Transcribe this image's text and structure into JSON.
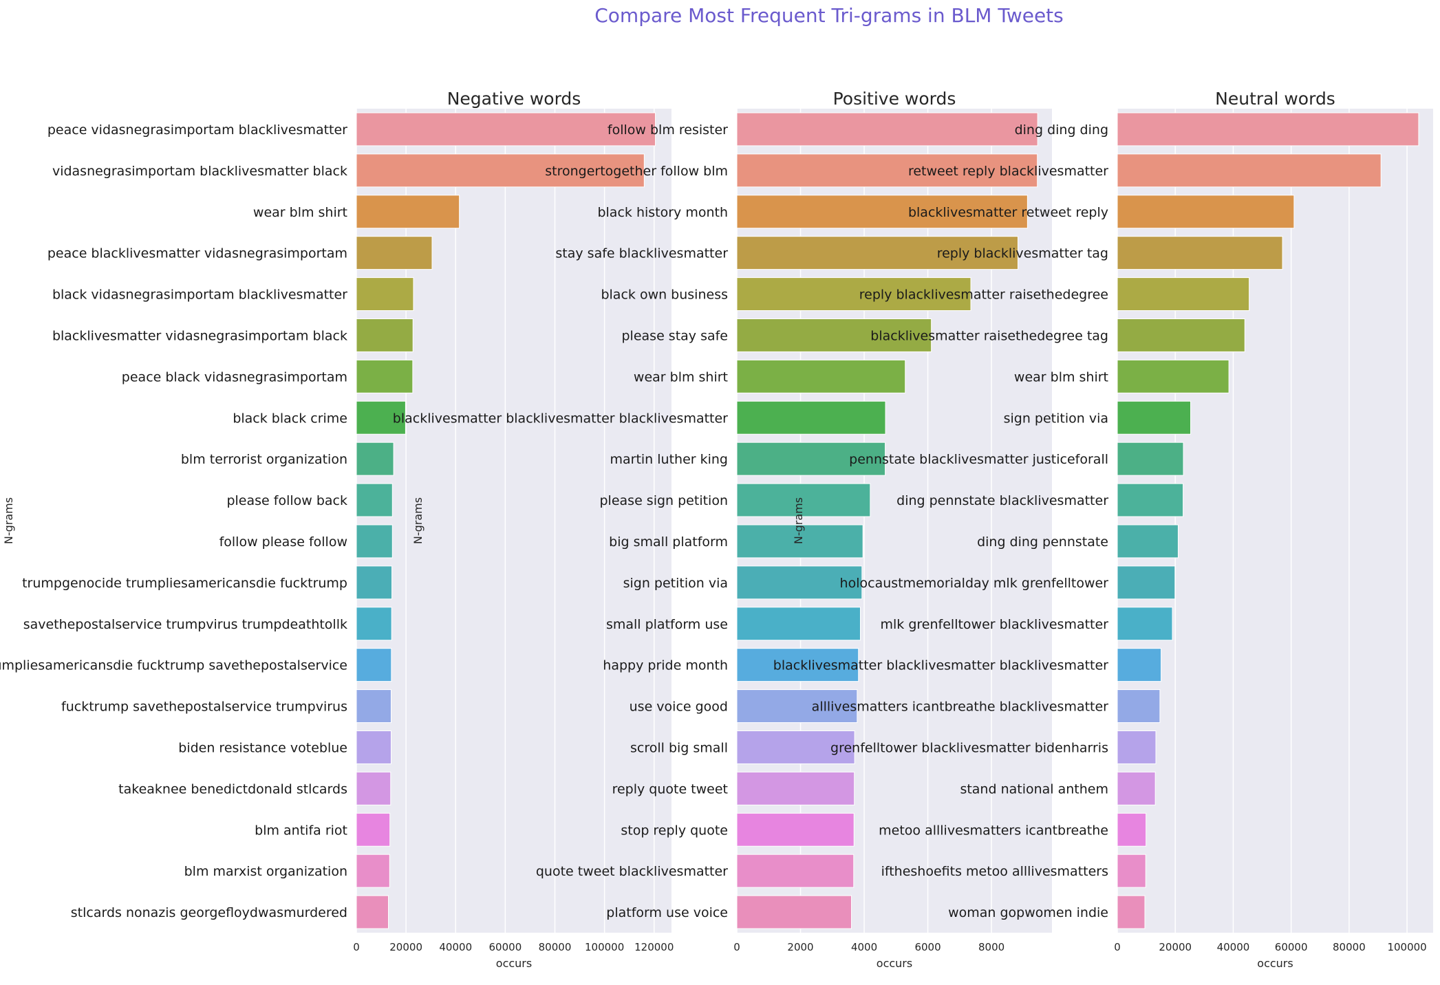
{
  "figure": {
    "suptitle": "Compare Most Frequent Tri-grams in BLM Tweets",
    "title_color": "#6a5acd"
  },
  "palette": [
    "#ea96a0",
    "#e8937f",
    "#d9944c",
    "#bd9c48",
    "#acaa45",
    "#94ab44",
    "#7bb046",
    "#4cb050",
    "#4cb086",
    "#4cb29a",
    "#4bb0a9",
    "#4baeb6",
    "#4ab0c8",
    "#57acde",
    "#93a9e6",
    "#b5a3ea",
    "#d397e3",
    "#e785e0",
    "#e88ec9",
    "#e98fbb"
  ],
  "chart_data": [
    {
      "type": "bar",
      "orientation": "horizontal",
      "title": "Negative words",
      "xlabel": "occurs",
      "ylabel": "N-grams",
      "xlim": [
        0,
        127000
      ],
      "xticks": [
        0,
        20000,
        40000,
        60000,
        80000,
        100000,
        120000
      ],
      "categories": [
        "peace vidasnegrasimportam blacklivesmatter",
        "vidasnegrasimportam blacklivesmatter black",
        "wear blm shirt",
        "peace blacklivesmatter vidasnegrasimportam",
        "black vidasnegrasimportam blacklivesmatter",
        "blacklivesmatter vidasnegrasimportam black",
        "peace black vidasnegrasimportam",
        "black black crime",
        "blm terrorist organization",
        "please follow back",
        "follow please follow",
        "trumpgenocide trumpliesamericansdie fucktrump",
        "savethepostalservice trumpvirus trumpdeathtollk",
        "trumpliesamericansdie fucktrump savethepostalservice",
        "fucktrump savethepostalservice trumpvirus",
        "biden resistance voteblue",
        "takeaknee benedictdonald stlcards",
        "blm antifa riot",
        "blm marxist organization",
        "stlcards nonazis georgefloydwasmurdered"
      ],
      "values": [
        120500,
        116000,
        41500,
        30500,
        23000,
        22800,
        22700,
        19800,
        15000,
        14500,
        14500,
        14300,
        14200,
        14100,
        14000,
        14000,
        13800,
        13500,
        13400,
        12900
      ]
    },
    {
      "type": "bar",
      "orientation": "horizontal",
      "title": "Positive words",
      "xlabel": "occurs",
      "ylabel": "N-grams",
      "xlim": [
        0,
        9900
      ],
      "xticks": [
        0,
        2000,
        4000,
        6000,
        8000
      ],
      "categories": [
        "follow blm resister",
        "strongertogether follow blm",
        "black history month",
        "stay safe blacklivesmatter",
        "black own business",
        "please stay safe",
        "wear blm shirt",
        "blacklivesmatter blacklivesmatter blacklivesmatter",
        "martin luther king",
        "please sign petition",
        "big small platform",
        "sign petition via",
        "small platform use",
        "happy pride month",
        "use voice good",
        "scroll big small",
        "reply quote tweet",
        "stop reply quote",
        "quote tweet blacklivesmatter",
        "platform use voice"
      ],
      "values": [
        9450,
        9440,
        9130,
        8830,
        7350,
        6110,
        5290,
        4670,
        4660,
        4190,
        3960,
        3930,
        3880,
        3820,
        3780,
        3700,
        3690,
        3680,
        3670,
        3600
      ]
    },
    {
      "type": "bar",
      "orientation": "horizontal",
      "title": "Neutral words",
      "xlabel": "occurs",
      "ylabel": "N-grams",
      "xlim": [
        0,
        109000
      ],
      "xticks": [
        0,
        20000,
        40000,
        60000,
        80000,
        100000
      ],
      "categories": [
        "ding ding ding",
        "retweet reply blacklivesmatter",
        "blacklivesmatter retweet reply",
        "reply blacklivesmatter tag",
        "reply blacklivesmatter raisethedegree",
        "blacklivesmatter raisethedegree tag",
        "wear blm shirt",
        "sign petition via",
        "pennstate blacklivesmatter justiceforall",
        "ding pennstate blacklivesmatter",
        "ding ding pennstate",
        "holocaustmemorialday mlk grenfelltower",
        "mlk grenfelltower blacklivesmatter",
        "blacklivesmatter blacklivesmatter blacklivesmatter",
        "alllivesmatters icantbreathe blacklivesmatter",
        "grenfelltower blacklivesmatter bidenharris",
        "stand national anthem",
        "metoo alllivesmatters icantbreathe",
        "iftheshoefits metoo alllivesmatters",
        "woman gopwomen indie"
      ],
      "values": [
        104000,
        91000,
        61000,
        57000,
        45500,
        44000,
        38500,
        25300,
        22800,
        22700,
        21000,
        19900,
        19000,
        15100,
        14700,
        13300,
        13100,
        9900,
        9800,
        9500
      ]
    }
  ]
}
